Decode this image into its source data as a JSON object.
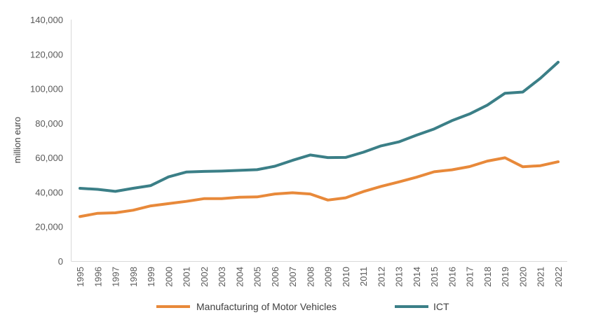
{
  "chart_data": {
    "type": "line",
    "title": "",
    "xlabel": "",
    "ylabel": "million euro",
    "ylim": [
      0,
      140000
    ],
    "yticks": [
      0,
      20000,
      40000,
      60000,
      80000,
      100000,
      120000,
      140000
    ],
    "ytick_labels": [
      "0",
      "20,000",
      "40,000",
      "60,000",
      "80,000",
      "100,000",
      "120,000",
      "140,000"
    ],
    "grid": false,
    "legend_position": "bottom",
    "x": [
      "1995",
      "1996",
      "1997",
      "1998",
      "1999",
      "2000",
      "2001",
      "2002",
      "2003",
      "2004",
      "2005",
      "2006",
      "2007",
      "2008",
      "2009",
      "2010",
      "2011",
      "2012",
      "2013",
      "2014",
      "2015",
      "2016",
      "2017",
      "2018",
      "2019",
      "2020",
      "2021",
      "2022"
    ],
    "series": [
      {
        "name": "Manufacturing of Motor Vehicles",
        "color": "#E8893A",
        "values": [
          25800,
          27700,
          28000,
          29500,
          32000,
          33300,
          34600,
          36200,
          36200,
          37000,
          37200,
          38900,
          39600,
          38900,
          35400,
          36700,
          40300,
          43300,
          45900,
          48600,
          51800,
          52900,
          54800,
          58000,
          59900,
          54700,
          55300,
          57600
        ]
      },
      {
        "name": "ICT",
        "color": "#3B7F87",
        "values": [
          42200,
          41600,
          40400,
          42200,
          43800,
          48800,
          51600,
          52000,
          52200,
          52600,
          53000,
          55000,
          58400,
          61500,
          60000,
          60100,
          63100,
          66800,
          69100,
          73000,
          76600,
          81400,
          85300,
          90400,
          97300,
          98000,
          106000,
          115300
        ]
      }
    ]
  }
}
